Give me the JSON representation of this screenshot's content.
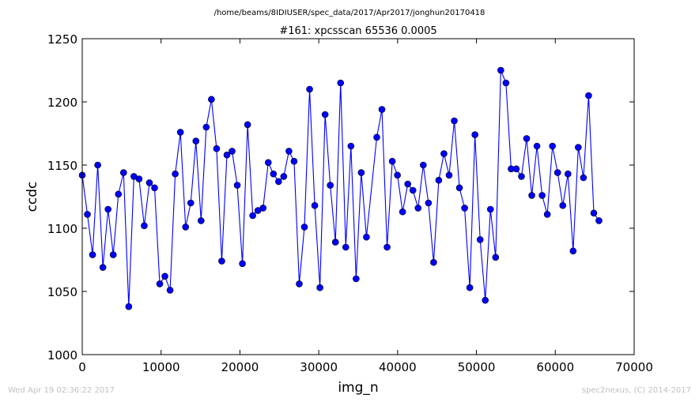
{
  "chart_data": {
    "type": "line",
    "suptitle": "/home/beams/8IDIUSER/spec_data/2017/Apr2017/jonghun20170418",
    "title": "#161: xpcsscan 65536 0.0005",
    "xlabel": "img_n",
    "ylabel": "ccdc",
    "xlim": [
      0,
      70000
    ],
    "ylim": [
      1000,
      1250
    ],
    "xticks": [
      0,
      10000,
      20000,
      30000,
      40000,
      50000,
      60000,
      70000
    ],
    "yticks": [
      1000,
      1050,
      1100,
      1150,
      1200,
      1250
    ],
    "grid": false,
    "legend": "none",
    "series": [
      {
        "color": "#0000ff",
        "marker": "circle",
        "x": [
          0,
          655,
          1311,
          1966,
          2621,
          3277,
          3932,
          4588,
          5243,
          5898,
          6554,
          7209,
          7864,
          8520,
          9175,
          9830,
          10486,
          11141,
          11796,
          12452,
          13107,
          13763,
          14418,
          15073,
          15729,
          16384,
          17039,
          17695,
          18350,
          19005,
          19661,
          20316,
          20972,
          21627,
          22282,
          22938,
          23593,
          24248,
          24904,
          25559,
          26214,
          26870,
          27525,
          28180,
          28836,
          29491,
          30147,
          30802,
          31457,
          32113,
          32768,
          33423,
          34079,
          34734,
          35389,
          36045,
          37356,
          38011,
          38666,
          39322,
          39977,
          40632,
          41288,
          41943,
          42598,
          43254,
          43909,
          44564,
          45220,
          45875,
          46531,
          47186,
          47841,
          48497,
          49152,
          49807,
          50463,
          51118,
          51773,
          52429,
          53084,
          53740,
          54395,
          55050,
          55706,
          56361,
          57016,
          57672,
          58327,
          58982,
          59638,
          60293,
          60948,
          61604,
          62259,
          62915,
          63570,
          64225,
          64881,
          65536
        ],
        "y": [
          1142,
          1111,
          1079,
          1150,
          1069,
          1115,
          1079,
          1127,
          1144,
          1038,
          1141,
          1139,
          1102,
          1136,
          1132,
          1056,
          1062,
          1051,
          1143,
          1176,
          1101,
          1120,
          1169,
          1106,
          1180,
          1202,
          1163,
          1074,
          1158,
          1161,
          1134,
          1072,
          1182,
          1110,
          1114,
          1116,
          1152,
          1143,
          1137,
          1141,
          1161,
          1153,
          1056,
          1101,
          1210,
          1118,
          1053,
          1190,
          1134,
          1089,
          1215,
          1085,
          1165,
          1060,
          1144,
          1093,
          1172,
          1194,
          1085,
          1153,
          1142,
          1113,
          1135,
          1130,
          1116,
          1150,
          1120,
          1073,
          1138,
          1159,
          1142,
          1185,
          1132,
          1116,
          1053,
          1174,
          1091,
          1043,
          1115,
          1077,
          1225,
          1215,
          1147,
          1147,
          1141,
          1171,
          1126,
          1165,
          1126,
          1111,
          1165,
          1144,
          1118,
          1143,
          1082,
          1164,
          1140,
          1205,
          1112,
          1106
        ]
      }
    ]
  },
  "footer": {
    "left": "Wed Apr 19 02:36:22 2017",
    "right": "spec2nexus, (C) 2014-2017"
  }
}
